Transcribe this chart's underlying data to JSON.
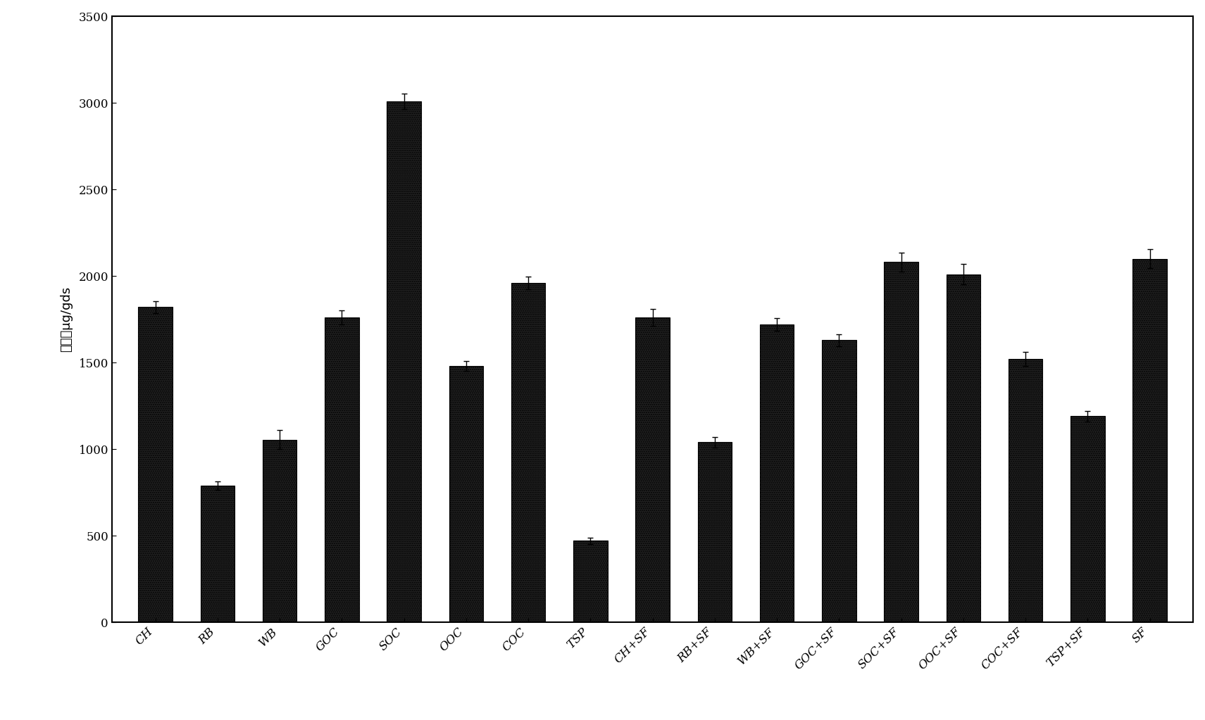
{
  "categories": [
    "CH",
    "RB",
    "WB",
    "GOC",
    "SOC",
    "OOC",
    "COC",
    "TSP",
    "CH+SF",
    "RB+SF",
    "WB+SF",
    "GOC+SF",
    "SOC+SF",
    "OOC+SF",
    "COC+SF",
    "TSP+SF",
    "SF"
  ],
  "values": [
    1820,
    790,
    1055,
    1760,
    3010,
    1480,
    1960,
    470,
    1760,
    1040,
    1720,
    1630,
    2080,
    2010,
    1520,
    1190,
    2100
  ],
  "errors": [
    35,
    25,
    55,
    40,
    45,
    30,
    35,
    20,
    50,
    30,
    35,
    35,
    55,
    60,
    40,
    30,
    55
  ],
  "bar_color": "#111111",
  "background_color": "#ffffff",
  "ylabel_line1": "棒酸，μg/gds",
  "ylim": [
    0,
    3500
  ],
  "yticks": [
    0,
    500,
    1000,
    1500,
    2000,
    2500,
    3000,
    3500
  ],
  "bar_width": 0.55,
  "figure_width": 17.11,
  "figure_height": 10.23,
  "dpi": 100,
  "ylabel_fontsize": 13,
  "tick_fontsize": 12,
  "xtick_rotation": 45
}
